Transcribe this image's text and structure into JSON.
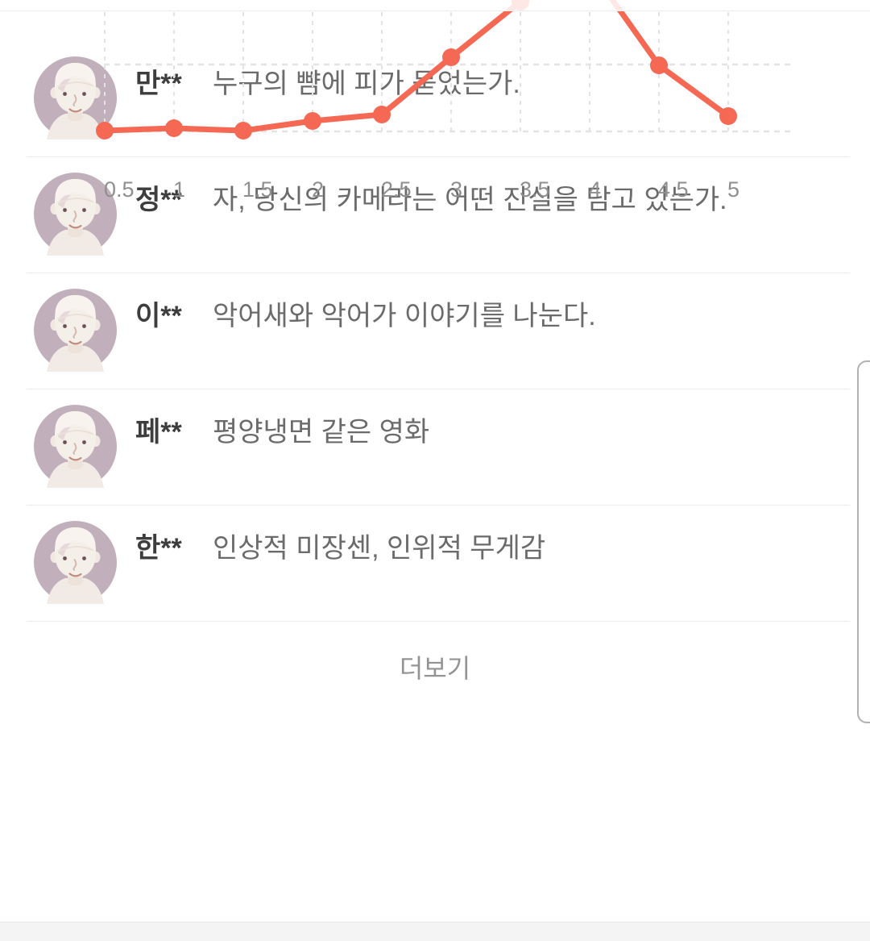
{
  "chart_data": {
    "type": "line",
    "title": "",
    "xlabel": "",
    "ylabel": "",
    "x": [
      0.5,
      1,
      1.5,
      2,
      2.5,
      3,
      3.5,
      4,
      4.5,
      5
    ],
    "x_labels": [
      "0.5",
      "1",
      "1.5",
      "2",
      "2.5",
      "3",
      "3.5",
      "4",
      "4.5",
      "5"
    ],
    "values": [
      28,
      31,
      28,
      40,
      48,
      119,
      188,
      230,
      109,
      46
    ],
    "values_note": "relative heights estimated from pixels; distribution peaks at rating 4, peak extends above the visible crop",
    "grid": true,
    "legend": "none",
    "line_color": "#f46854",
    "grid_color": "#e3e3e3",
    "axis_label_color": "#8f8f8f"
  },
  "reviews": [
    {
      "username": "만**",
      "text": "누구의 뺨에 피가 묻었는가."
    },
    {
      "username": "정**",
      "text": "자, 당신의 카메라는 어떤 진실을 담고 있는가."
    },
    {
      "username": "이**",
      "text": "악어새와 악어가 이야기를 나눈다."
    },
    {
      "username": "페**",
      "text": "평양냉면 같은 영화"
    },
    {
      "username": "한**",
      "text": "인상적 미장센, 인위적 무게감"
    }
  ],
  "more_label": "더보기",
  "colors": {
    "accent": "#f46854",
    "avatar_bg": "#c1b0bc",
    "avatar_skin": "#f5efea",
    "divider": "#ececec",
    "bottom_strip": "#f4f4f4",
    "username_text": "#3d3d3d",
    "review_text": "#6b6b6b",
    "more_text": "#949494"
  }
}
